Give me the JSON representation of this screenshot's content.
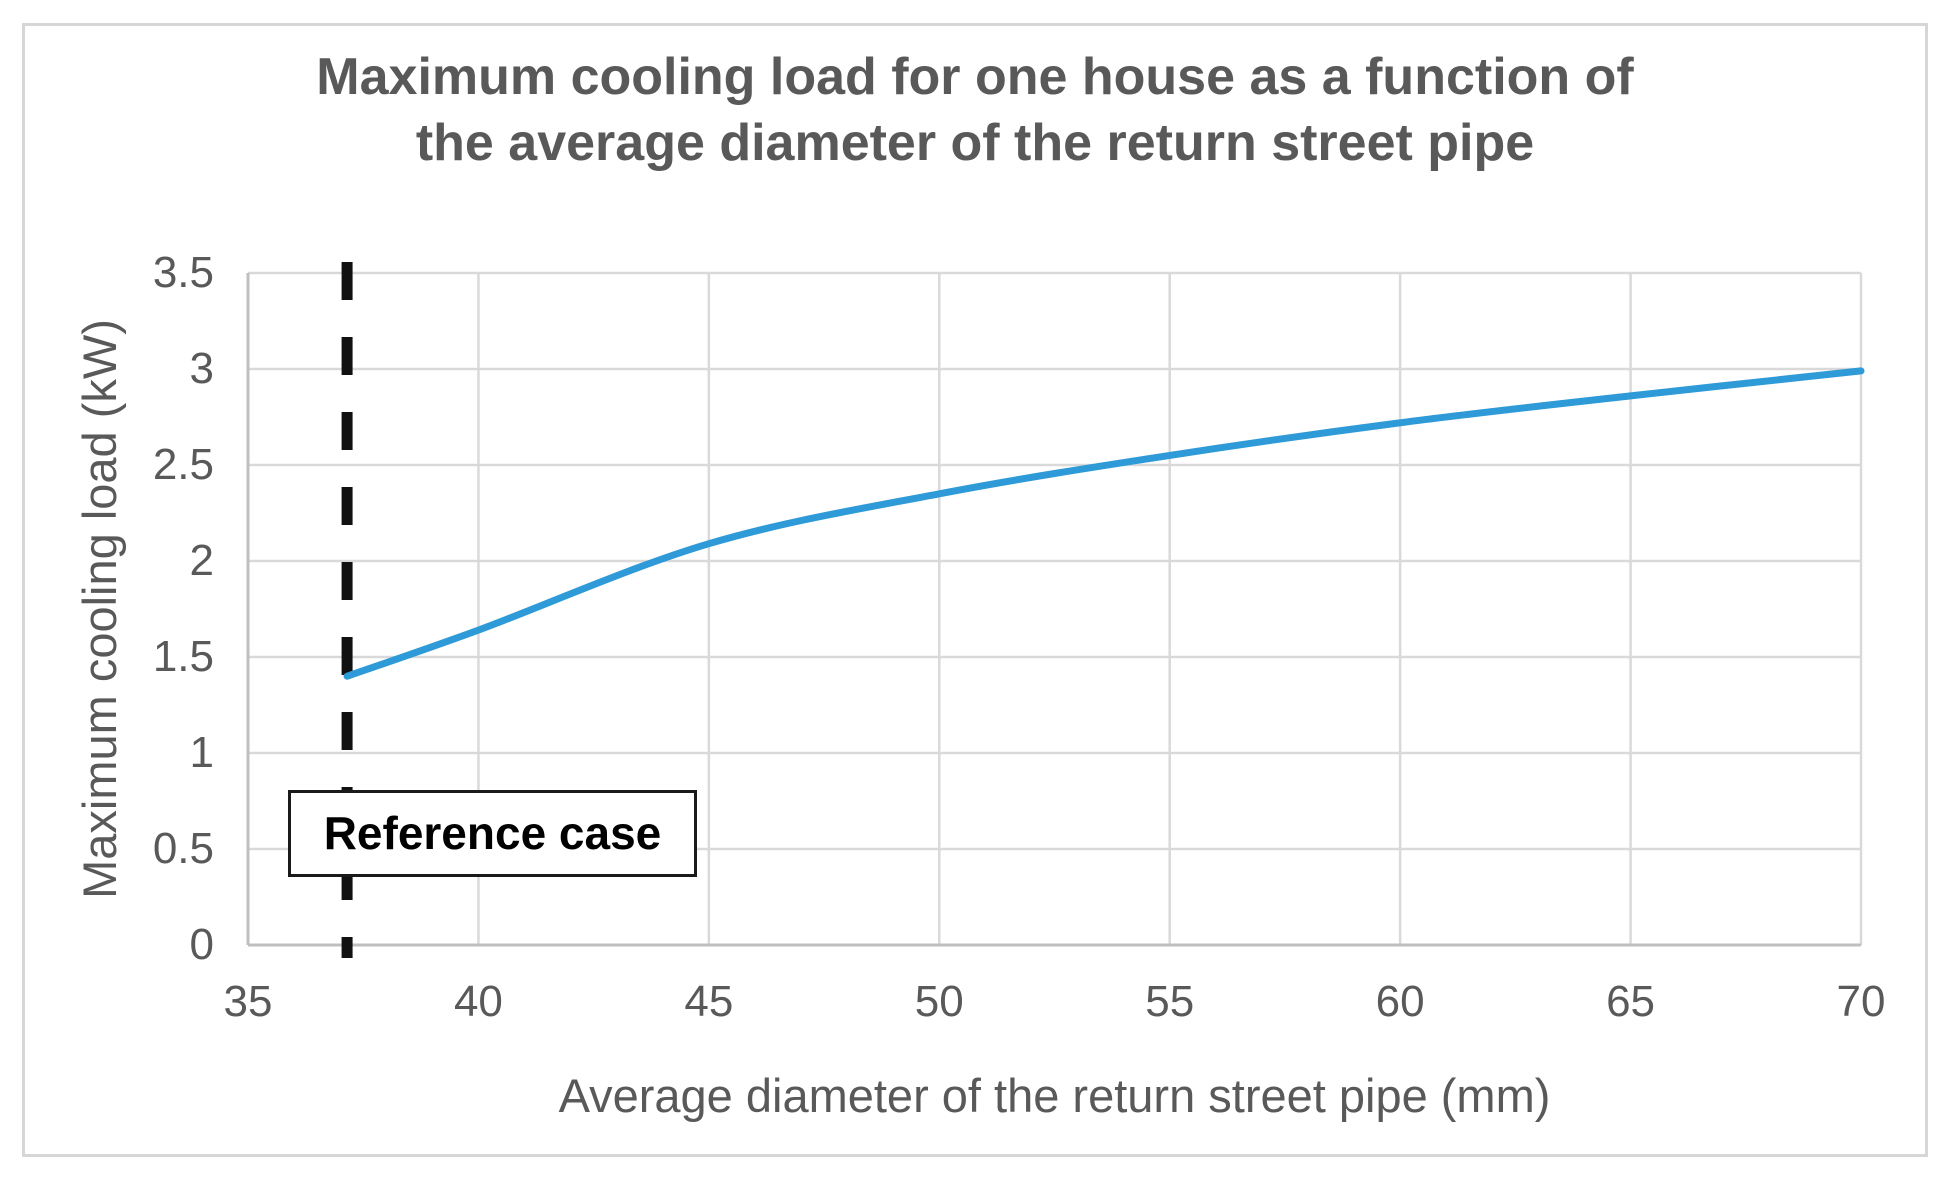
{
  "figure": {
    "background": "#ffffff",
    "border_color": "#d6d6d6"
  },
  "chart_data": {
    "type": "line",
    "title": "Maximum cooling load for one house as a function of the average diameter of the return street pipe",
    "title_lines": [
      "Maximum cooling load for one house as a function of",
      "the average diameter of the return street pipe"
    ],
    "xlabel": "Average diameter of the return street pipe (mm)",
    "ylabel": "Maximum cooling load (kW)",
    "xlim": [
      35,
      70
    ],
    "ylim": [
      0,
      3.5
    ],
    "x_ticks": [
      35,
      40,
      45,
      50,
      55,
      60,
      65,
      70
    ],
    "y_ticks": [
      0,
      0.5,
      1,
      1.5,
      2,
      2.5,
      3,
      3.5
    ],
    "grid": true,
    "legend_position": "none",
    "colors": {
      "line": "#2e9ad7",
      "grid": "#d9d9d9",
      "axis": "#bfbfbf",
      "text": "#595959",
      "reference_line": "#111111"
    },
    "series": [
      {
        "name": "Maximum cooling load",
        "color": "#2e9ad7",
        "points": [
          [
            37.15,
            1.4
          ],
          [
            40,
            1.64
          ],
          [
            45,
            2.09
          ],
          [
            50,
            2.35
          ],
          [
            55,
            2.55
          ],
          [
            60,
            2.72
          ],
          [
            65,
            2.86
          ],
          [
            70,
            2.99
          ]
        ]
      }
    ],
    "annotations": [
      {
        "type": "vline",
        "x": 37.15,
        "line_style": "dashed",
        "color": "#111111",
        "label": "Reference case"
      }
    ]
  }
}
